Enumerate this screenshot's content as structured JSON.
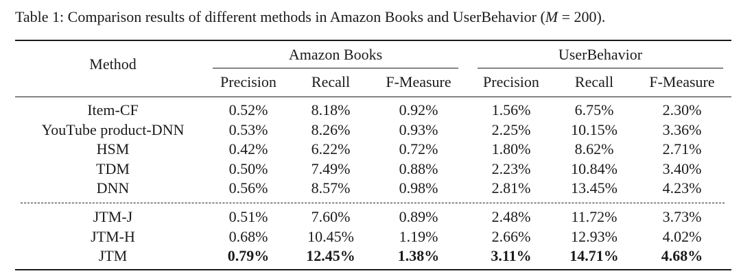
{
  "caption": {
    "prefix": "Table 1: Comparison results of different methods in Amazon Books and UserBehavior (",
    "math_var": "M",
    "math_rest": " = 200",
    "suffix": ")."
  },
  "header": {
    "method": "Method",
    "groups": [
      "Amazon Books",
      "UserBehavior"
    ],
    "metrics": [
      "Precision",
      "Recall",
      "F-Measure",
      "Precision",
      "Recall",
      "F-Measure"
    ]
  },
  "rows": [
    {
      "method": "Item-CF",
      "values": [
        "0.52%",
        "8.18%",
        "0.92%",
        "1.56%",
        "6.75%",
        "2.30%"
      ],
      "bold": false
    },
    {
      "method": "YouTube product-DNN",
      "values": [
        "0.53%",
        "8.26%",
        "0.93%",
        "2.25%",
        "10.15%",
        "3.36%"
      ],
      "bold": false
    },
    {
      "method": "HSM",
      "values": [
        "0.42%",
        "6.22%",
        "0.72%",
        "1.80%",
        "8.62%",
        "2.71%"
      ],
      "bold": false
    },
    {
      "method": "TDM",
      "values": [
        "0.50%",
        "7.49%",
        "0.88%",
        "2.23%",
        "10.84%",
        "3.40%"
      ],
      "bold": false
    },
    {
      "method": "DNN",
      "values": [
        "0.56%",
        "8.57%",
        "0.98%",
        "2.81%",
        "13.45%",
        "4.23%"
      ],
      "bold": false
    },
    {
      "method": "JTM-J",
      "values": [
        "0.51%",
        "7.60%",
        "0.89%",
        "2.48%",
        "11.72%",
        "3.73%"
      ],
      "bold": false
    },
    {
      "method": "JTM-H",
      "values": [
        "0.68%",
        "10.45%",
        "1.19%",
        "2.66%",
        "12.93%",
        "4.02%"
      ],
      "bold": false
    },
    {
      "method": "JTM",
      "values": [
        "0.79%",
        "12.45%",
        "1.38%",
        "3.11%",
        "14.71%",
        "4.68%"
      ],
      "bold": true
    }
  ]
}
